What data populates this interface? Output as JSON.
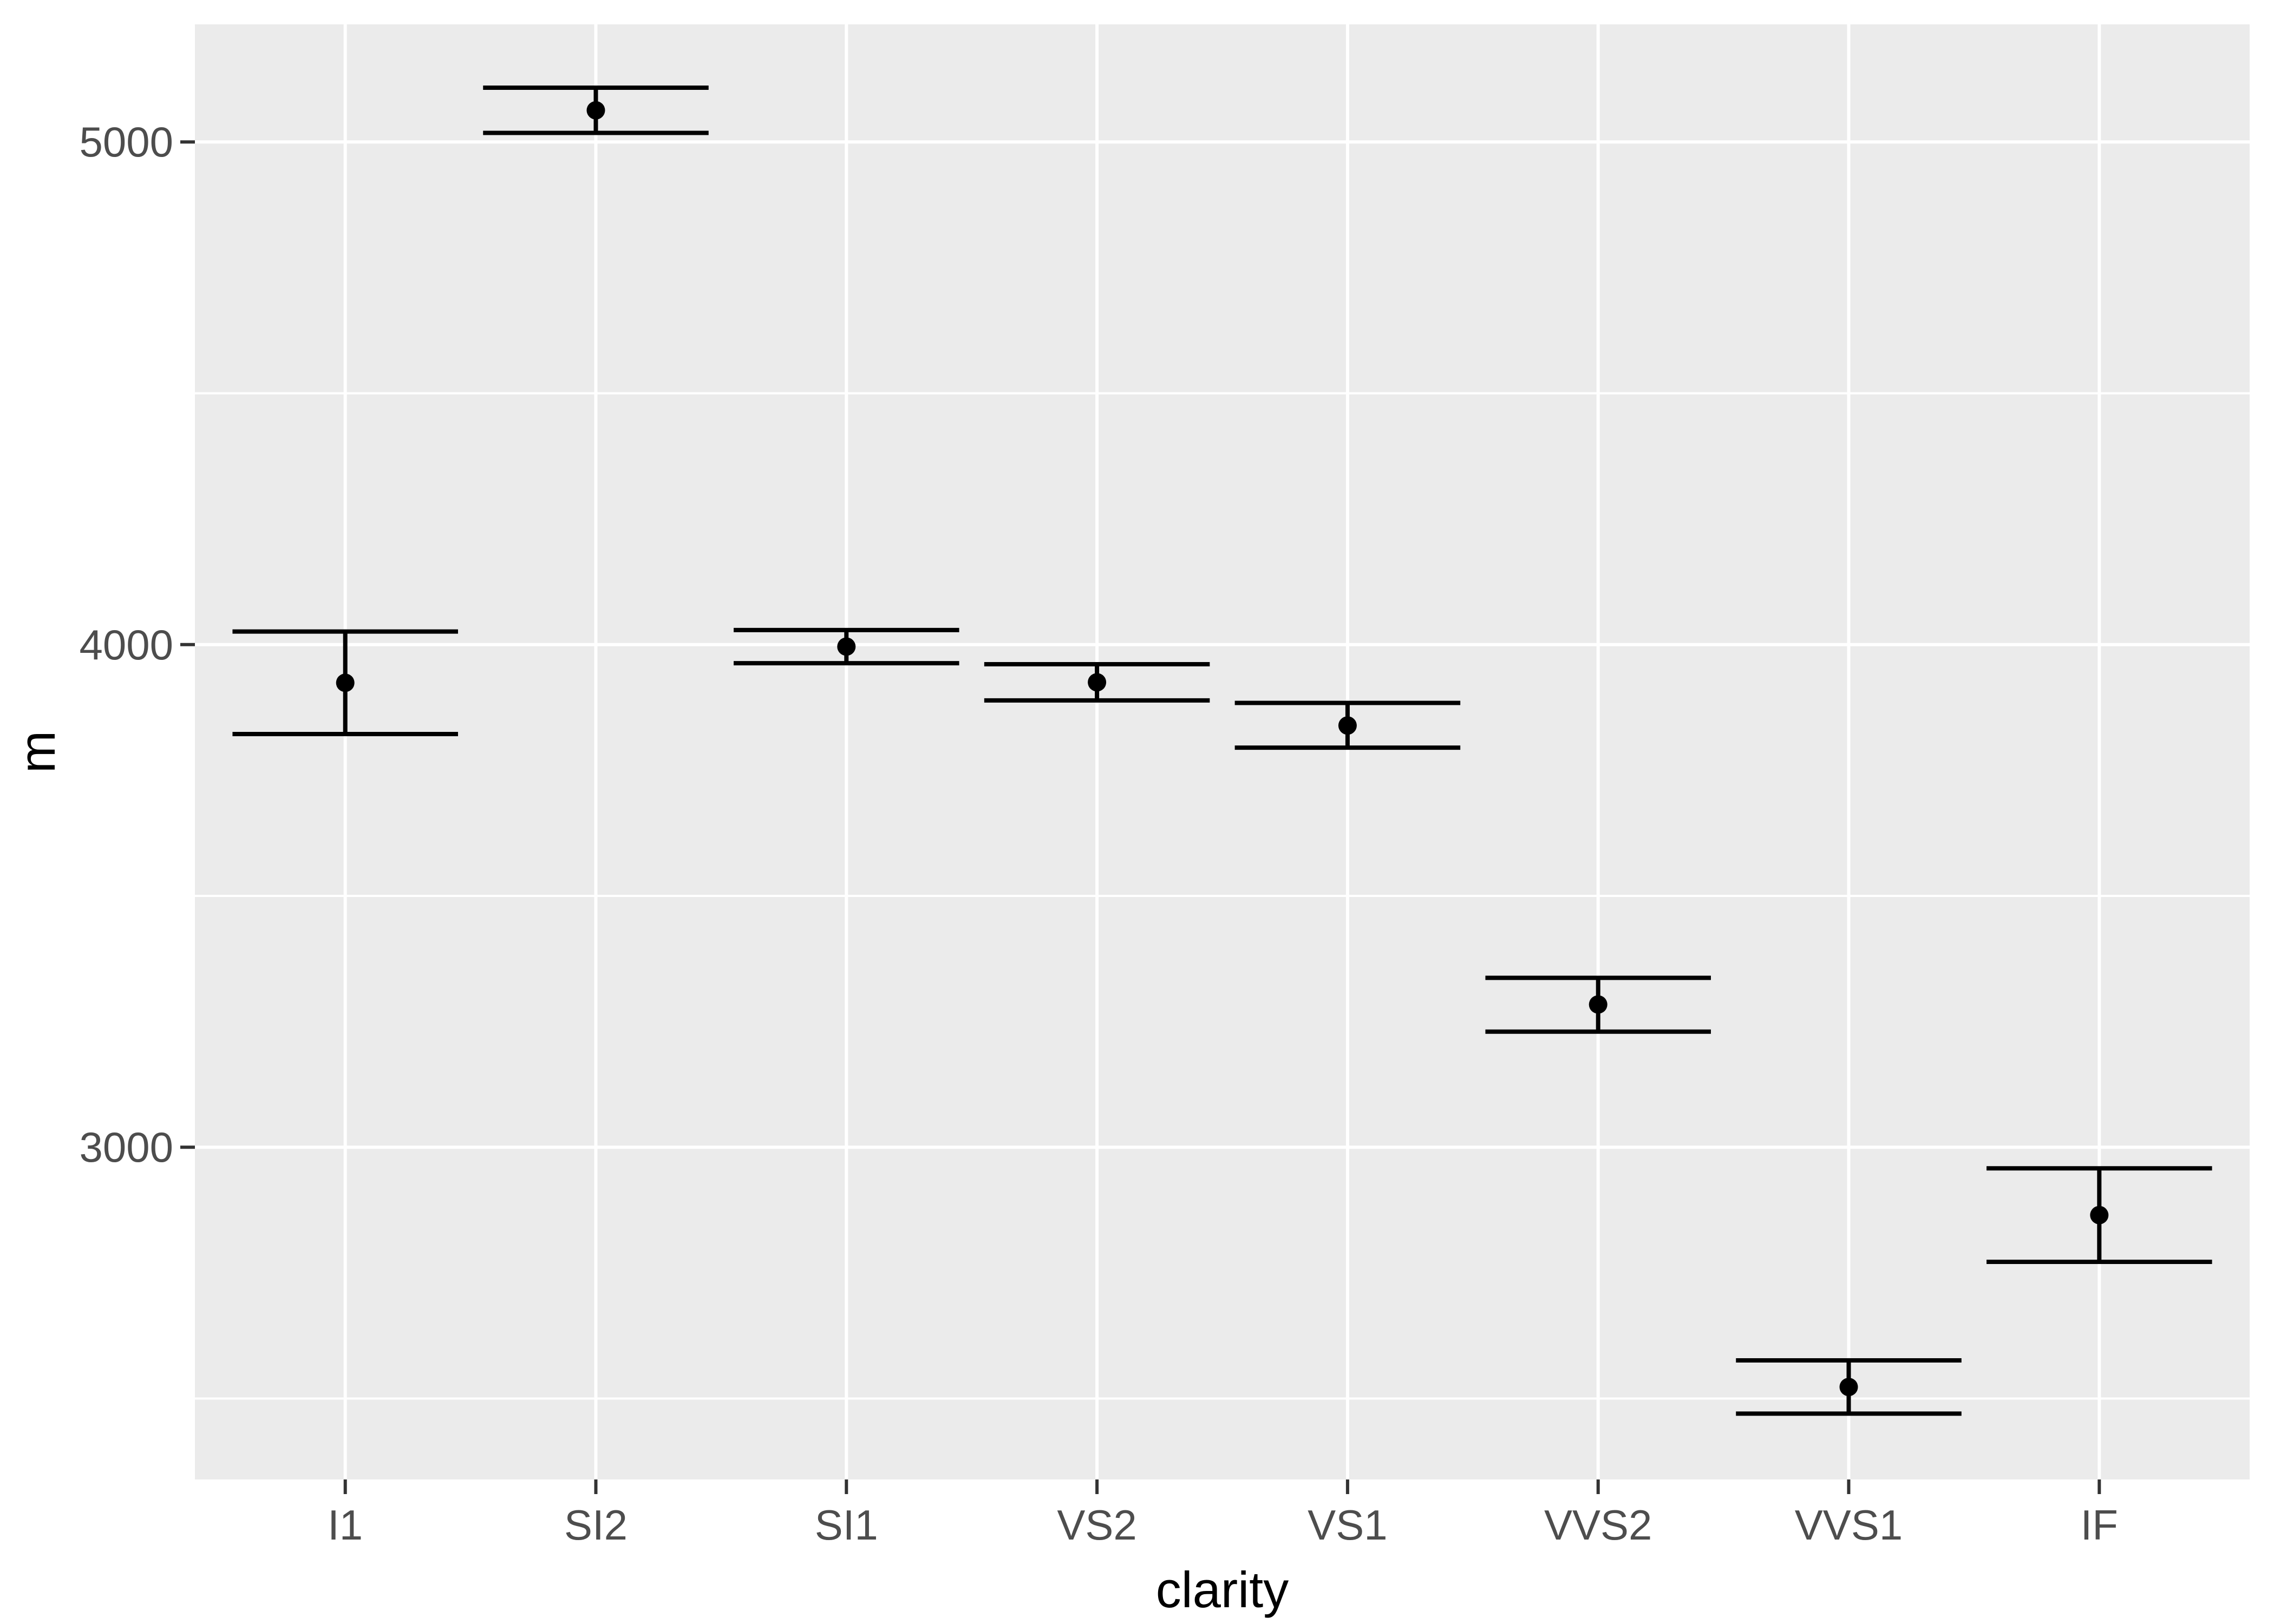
{
  "chart_data": {
    "type": "pointrange",
    "title": "",
    "xlabel": "clarity",
    "ylabel": "m",
    "categories": [
      "I1",
      "SI2",
      "SI1",
      "VS2",
      "VS1",
      "VVS2",
      "VVS1",
      "IF"
    ],
    "points": [
      {
        "clarity": "I1",
        "mean": 3924,
        "ymin": 3822,
        "ymax": 4026
      },
      {
        "clarity": "SI2",
        "mean": 5063,
        "ymin": 5018,
        "ymax": 5108
      },
      {
        "clarity": "SI1",
        "mean": 3996,
        "ymin": 3963,
        "ymax": 4029
      },
      {
        "clarity": "VS2",
        "mean": 3925,
        "ymin": 3889,
        "ymax": 3961
      },
      {
        "clarity": "VS1",
        "mean": 3839,
        "ymin": 3795,
        "ymax": 3884
      },
      {
        "clarity": "VVS2",
        "mean": 3284,
        "ymin": 3230,
        "ymax": 3337
      },
      {
        "clarity": "VVS1",
        "mean": 2523,
        "ymin": 2470,
        "ymax": 2576
      },
      {
        "clarity": "IF",
        "mean": 2865,
        "ymin": 2772,
        "ymax": 2958
      }
    ],
    "y_axis": {
      "ticks": [
        5000,
        4000,
        3000
      ],
      "tick_labels": [
        "5000",
        "4000",
        "3000"
      ],
      "minor_ticks": [
        4500,
        3500,
        2500
      ],
      "ylim": [
        2339,
        5234
      ]
    },
    "x_axis": {
      "tick_labels": [
        "I1",
        "SI2",
        "SI1",
        "VS2",
        "VS1",
        "VVS2",
        "VVS1",
        "IF"
      ]
    },
    "grid": true,
    "legend": "none",
    "colors": {
      "page_bg": "#FFFFFF",
      "panel_bg": "#EBEBEB",
      "grid": "#FFFFFF",
      "marks": "#000000",
      "tick_text": "#4D4D4D",
      "axis_title": "#000000",
      "tick_mark": "#333333"
    }
  }
}
